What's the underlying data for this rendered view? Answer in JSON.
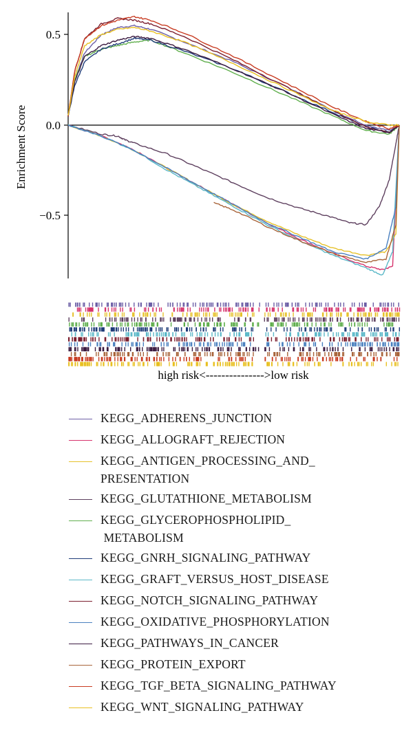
{
  "chart_data": {
    "type": "line",
    "ylabel": "Enrichment Score",
    "yticks": [
      "0.5",
      "0.0",
      "−0.5"
    ],
    "ylim": [
      -0.85,
      0.63
    ],
    "x_caption": "high risk<--------------->low risk",
    "series": [
      {
        "name": "KEGG_ADHERENS_JUNCTION",
        "color": "#6c5fa6",
        "direction": "up",
        "values": [
          [
            0,
            0.05
          ],
          [
            0.02,
            0.25
          ],
          [
            0.05,
            0.4
          ],
          [
            0.1,
            0.5
          ],
          [
            0.15,
            0.54
          ],
          [
            0.2,
            0.55
          ],
          [
            0.25,
            0.53
          ],
          [
            0.35,
            0.46
          ],
          [
            0.5,
            0.35
          ],
          [
            0.65,
            0.22
          ],
          [
            0.8,
            0.08
          ],
          [
            0.9,
            0.0
          ],
          [
            0.97,
            -0.03
          ],
          [
            1,
            0.0
          ]
        ]
      },
      {
        "name": "KEGG_ALLOGRAFT_REJECTION",
        "color": "#d6336c",
        "direction": "down",
        "values": [
          [
            0,
            0.0
          ],
          [
            0.1,
            -0.06
          ],
          [
            0.2,
            -0.14
          ],
          [
            0.3,
            -0.24
          ],
          [
            0.4,
            -0.34
          ],
          [
            0.5,
            -0.44
          ],
          [
            0.6,
            -0.54
          ],
          [
            0.7,
            -0.63
          ],
          [
            0.8,
            -0.71
          ],
          [
            0.9,
            -0.78
          ],
          [
            0.95,
            -0.8
          ],
          [
            0.98,
            -0.78
          ],
          [
            1,
            0.0
          ]
        ]
      },
      {
        "name": "KEGG_ANTIGEN_PROCESSING_AND_\nPRESENTATION",
        "color": "#e6c12a",
        "direction": "down",
        "values": [
          [
            0,
            0.0
          ],
          [
            0.1,
            -0.06
          ],
          [
            0.2,
            -0.14
          ],
          [
            0.3,
            -0.24
          ],
          [
            0.4,
            -0.34
          ],
          [
            0.5,
            -0.44
          ],
          [
            0.6,
            -0.53
          ],
          [
            0.7,
            -0.61
          ],
          [
            0.8,
            -0.68
          ],
          [
            0.9,
            -0.72
          ],
          [
            0.96,
            -0.7
          ],
          [
            0.99,
            -0.6
          ],
          [
            1,
            0.0
          ]
        ]
      },
      {
        "name": "KEGG_GLUTATHIONE_METABOLISM",
        "color": "#5d3f5e",
        "direction": "down",
        "values": [
          [
            0,
            0.0
          ],
          [
            0.1,
            -0.05
          ],
          [
            0.15,
            -0.06
          ],
          [
            0.17,
            -0.08
          ],
          [
            0.2,
            -0.1
          ],
          [
            0.3,
            -0.16
          ],
          [
            0.4,
            -0.24
          ],
          [
            0.5,
            -0.32
          ],
          [
            0.6,
            -0.4
          ],
          [
            0.7,
            -0.46
          ],
          [
            0.78,
            -0.5
          ],
          [
            0.85,
            -0.54
          ],
          [
            0.9,
            -0.55
          ],
          [
            0.94,
            -0.45
          ],
          [
            0.97,
            -0.3
          ],
          [
            0.99,
            -0.1
          ],
          [
            1,
            0.0
          ]
        ]
      },
      {
        "name": "KEGG_GLYCEROPHOSPHOLIPID_\n METABOLISM",
        "color": "#5fae4c",
        "direction": "up",
        "values": [
          [
            0,
            0.05
          ],
          [
            0.02,
            0.25
          ],
          [
            0.05,
            0.38
          ],
          [
            0.1,
            0.42
          ],
          [
            0.15,
            0.44
          ],
          [
            0.2,
            0.46
          ],
          [
            0.25,
            0.47
          ],
          [
            0.35,
            0.4
          ],
          [
            0.5,
            0.29
          ],
          [
            0.65,
            0.17
          ],
          [
            0.8,
            0.05
          ],
          [
            0.9,
            -0.03
          ],
          [
            0.97,
            -0.05
          ],
          [
            1,
            0.0
          ]
        ]
      },
      {
        "name": "KEGG_GNRH_SIGNALING_PATHWAY",
        "color": "#1f3c78",
        "direction": "up",
        "values": [
          [
            0,
            0.05
          ],
          [
            0.02,
            0.22
          ],
          [
            0.05,
            0.35
          ],
          [
            0.1,
            0.42
          ],
          [
            0.15,
            0.45
          ],
          [
            0.2,
            0.48
          ],
          [
            0.25,
            0.47
          ],
          [
            0.35,
            0.41
          ],
          [
            0.5,
            0.31
          ],
          [
            0.65,
            0.19
          ],
          [
            0.8,
            0.07
          ],
          [
            0.9,
            -0.01
          ],
          [
            0.97,
            -0.04
          ],
          [
            1,
            0.0
          ]
        ]
      },
      {
        "name": "KEGG_GRAFT_VERSUS_HOST_DISEASE",
        "color": "#5bb8c8",
        "direction": "down",
        "values": [
          [
            0,
            0.0
          ],
          [
            0.1,
            -0.06
          ],
          [
            0.2,
            -0.14
          ],
          [
            0.3,
            -0.25
          ],
          [
            0.4,
            -0.35
          ],
          [
            0.5,
            -0.45
          ],
          [
            0.6,
            -0.55
          ],
          [
            0.7,
            -0.64
          ],
          [
            0.8,
            -0.72
          ],
          [
            0.9,
            -0.79
          ],
          [
            0.95,
            -0.83
          ],
          [
            0.98,
            -0.7
          ],
          [
            1,
            0.0
          ]
        ]
      },
      {
        "name": "KEGG_NOTCH_SIGNALING_PATHWAY",
        "color": "#7b1e2e",
        "direction": "up",
        "values": [
          [
            0,
            0.05
          ],
          [
            0.02,
            0.3
          ],
          [
            0.05,
            0.48
          ],
          [
            0.1,
            0.56
          ],
          [
            0.15,
            0.59
          ],
          [
            0.2,
            0.58
          ],
          [
            0.25,
            0.56
          ],
          [
            0.35,
            0.49
          ],
          [
            0.5,
            0.36
          ],
          [
            0.65,
            0.22
          ],
          [
            0.8,
            0.08
          ],
          [
            0.9,
            -0.01
          ],
          [
            0.97,
            -0.04
          ],
          [
            1,
            0.0
          ]
        ]
      },
      {
        "name": "KEGG_OXIDATIVE_PHOSPHORYLATION",
        "color": "#4a80bf",
        "direction": "down",
        "values": [
          [
            0,
            0.0
          ],
          [
            0.1,
            -0.06
          ],
          [
            0.2,
            -0.14
          ],
          [
            0.3,
            -0.24
          ],
          [
            0.4,
            -0.34
          ],
          [
            0.5,
            -0.44
          ],
          [
            0.6,
            -0.54
          ],
          [
            0.7,
            -0.62
          ],
          [
            0.8,
            -0.7
          ],
          [
            0.9,
            -0.74
          ],
          [
            0.96,
            -0.68
          ],
          [
            0.99,
            -0.45
          ],
          [
            1,
            0.0
          ]
        ]
      },
      {
        "name": "KEGG_PATHWAYS_IN_CANCER",
        "color": "#3b1a40",
        "direction": "up",
        "values": [
          [
            0,
            0.05
          ],
          [
            0.02,
            0.24
          ],
          [
            0.05,
            0.38
          ],
          [
            0.1,
            0.44
          ],
          [
            0.15,
            0.47
          ],
          [
            0.2,
            0.49
          ],
          [
            0.25,
            0.48
          ],
          [
            0.35,
            0.42
          ],
          [
            0.5,
            0.31
          ],
          [
            0.65,
            0.19
          ],
          [
            0.8,
            0.06
          ],
          [
            0.9,
            -0.02
          ],
          [
            0.97,
            -0.04
          ],
          [
            1,
            0.0
          ]
        ]
      },
      {
        "name": "KEGG_PROTEIN_EXPORT",
        "color": "#a8643a",
        "direction": "down",
        "values": [
          [
            0.44,
            -0.43
          ],
          [
            0.5,
            -0.47
          ],
          [
            0.6,
            -0.56
          ],
          [
            0.7,
            -0.64
          ],
          [
            0.8,
            -0.71
          ],
          [
            0.9,
            -0.76
          ],
          [
            0.96,
            -0.74
          ],
          [
            0.99,
            -0.55
          ],
          [
            1,
            0.0
          ]
        ]
      },
      {
        "name": "KEGG_TGF_BETA_SIGNALING_PATHWAY",
        "color": "#c83a20",
        "direction": "up",
        "values": [
          [
            0,
            0.05
          ],
          [
            0.02,
            0.3
          ],
          [
            0.05,
            0.48
          ],
          [
            0.1,
            0.55
          ],
          [
            0.15,
            0.58
          ],
          [
            0.2,
            0.6
          ],
          [
            0.25,
            0.58
          ],
          [
            0.35,
            0.51
          ],
          [
            0.5,
            0.38
          ],
          [
            0.65,
            0.24
          ],
          [
            0.8,
            0.1
          ],
          [
            0.9,
            0.02
          ],
          [
            0.97,
            -0.02
          ],
          [
            1,
            0.0
          ]
        ]
      },
      {
        "name": "KEGG_WNT_SIGNALING_PATHWAY",
        "color": "#e8c020",
        "direction": "up",
        "values": [
          [
            0,
            0.05
          ],
          [
            0.02,
            0.27
          ],
          [
            0.05,
            0.44
          ],
          [
            0.1,
            0.5
          ],
          [
            0.15,
            0.53
          ],
          [
            0.2,
            0.54
          ],
          [
            0.25,
            0.52
          ],
          [
            0.35,
            0.46
          ],
          [
            0.5,
            0.34
          ],
          [
            0.65,
            0.21
          ],
          [
            0.8,
            0.08
          ],
          [
            0.9,
            0.02
          ],
          [
            0.97,
            0.0
          ],
          [
            1,
            0.0
          ]
        ]
      }
    ]
  }
}
